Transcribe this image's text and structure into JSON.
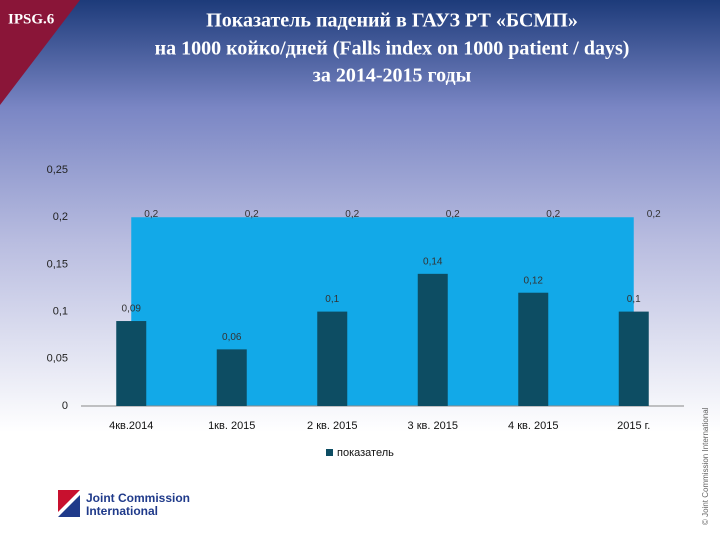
{
  "slide": {
    "badge": "IPSG.6",
    "logo": [
      "Joint Commission",
      "International"
    ],
    "copyright": "© Joint Commission International"
  },
  "chart_data": {
    "type": "bar",
    "title": [
      "Показатель падений в ГАУЗ РТ «БСМП»",
      "на 1000 койко/дней (Falls index on 1000 patient / days)",
      "за 2014-2015 годы"
    ],
    "categories": [
      "4кв.2014",
      "1кв. 2015",
      "2 кв. 2015",
      "3 кв. 2015",
      "4 кв. 2015",
      "2015 г."
    ],
    "series": [
      {
        "name": "показатель",
        "color": "#0d4d63",
        "values": [
          0.09,
          0.06,
          0.1,
          0.14,
          0.12,
          0.1
        ],
        "value_labels": [
          "0,09",
          "0,06",
          "0,1",
          "0,14",
          "0,12",
          "0,1"
        ]
      }
    ],
    "area": {
      "color": "#12a9e8",
      "values": [
        0.2,
        0.2,
        0.2,
        0.2,
        0.2,
        0.2
      ],
      "value_labels": [
        "0,2",
        "0,2",
        "0,2",
        "0,2",
        "0,2",
        "0,2"
      ]
    },
    "ylim": [
      0,
      0.25
    ],
    "yticks": [
      0,
      {
        "value": 0.05,
        "label": "0,05"
      },
      {
        "value": 0.1,
        "label": "0,1"
      },
      {
        "value": 0.15,
        "label": "0,15"
      },
      {
        "value": 0.2,
        "label": "0,2"
      },
      {
        "value": 0.25,
        "label": "0,25"
      }
    ],
    "legend": "bottom"
  }
}
